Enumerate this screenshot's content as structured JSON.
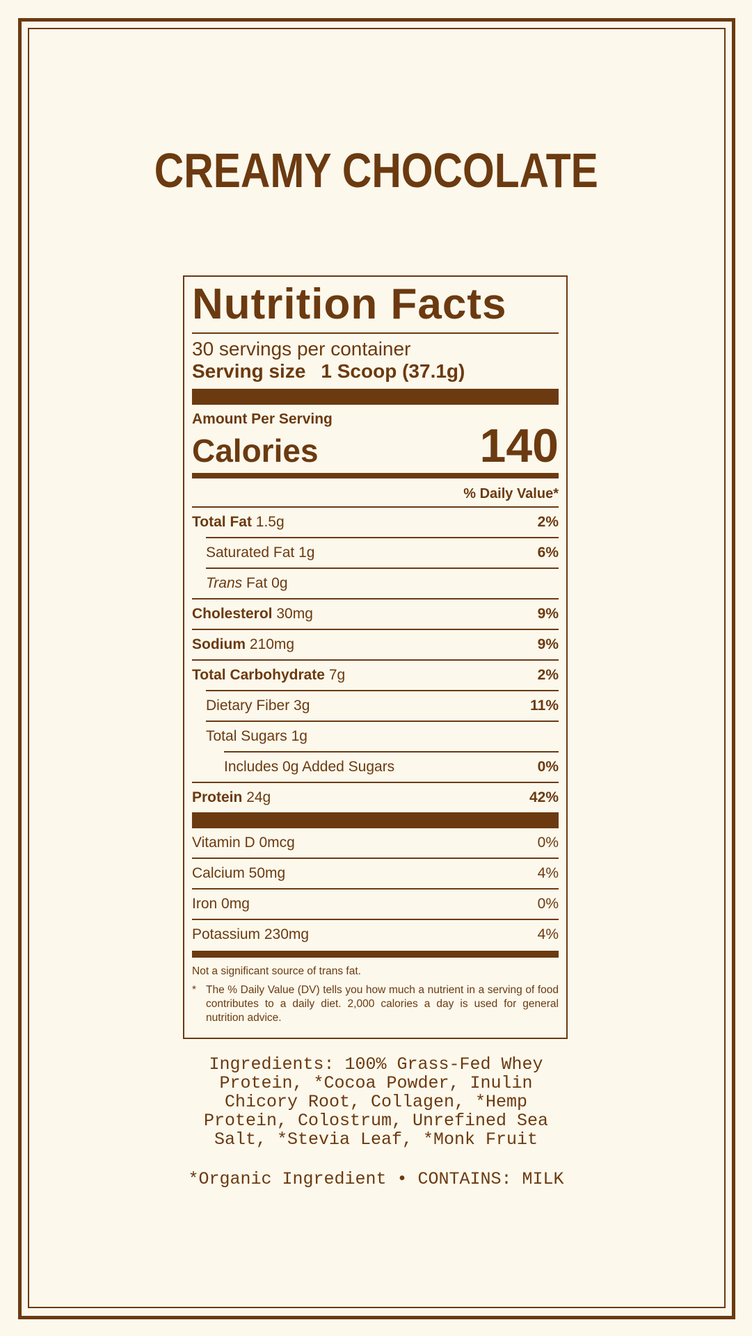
{
  "colors": {
    "brand": "#6b3a10",
    "background": "#fcf8ec"
  },
  "product_title": "CREAMY CHOCOLATE",
  "label": {
    "heading": "Nutrition Facts",
    "servings_per_container": "30 servings per container",
    "serving_size_label": "Serving size",
    "serving_size_value": "1 Scoop (37.1g)",
    "amount_per_serving": "Amount Per Serving",
    "calories_label": "Calories",
    "calories_value": "140",
    "dv_header": "% Daily Value*",
    "nutrients": [
      {
        "name": "Total Fat",
        "amount": "1.5g",
        "dv": "2%"
      },
      {
        "name": "Saturated Fat",
        "amount": "1g",
        "dv": "6%"
      },
      {
        "name": "Trans",
        "amount": "Fat 0g",
        "dv": ""
      },
      {
        "name": "Cholesterol",
        "amount": "30mg",
        "dv": "9%"
      },
      {
        "name": "Sodium",
        "amount": "210mg",
        "dv": "9%"
      },
      {
        "name": "Total Carbohydrate",
        "amount": "7g",
        "dv": "2%"
      },
      {
        "name": "Dietary Fiber",
        "amount": "3g",
        "dv": "11%"
      },
      {
        "name": "Total Sugars",
        "amount": "1g",
        "dv": ""
      },
      {
        "name": "Includes 0g Added Sugars",
        "amount": "",
        "dv": "0%"
      },
      {
        "name": "Protein",
        "amount": "24g",
        "dv": "42%"
      }
    ],
    "vitamins": [
      {
        "text": "Vitamin D 0mcg",
        "dv": "0%"
      },
      {
        "text": "Calcium 50mg",
        "dv": "4%"
      },
      {
        "text": "Iron 0mg",
        "dv": "0%"
      },
      {
        "text": "Potassium 230mg",
        "dv": "4%"
      }
    ],
    "footnote_trans": "Not a significant source of trans fat.",
    "footnote_star": "*",
    "footnote_dv": "The % Daily Value (DV) tells you how much a nutrient in a serving of food contributes to a daily diet. 2,000 calories a day is used for general nutrition advice."
  },
  "ingredients_lines": [
    "Ingredients: 100% Grass-Fed Whey",
    "Protein, *Cocoa Powder, Inulin",
    "Chicory Root, Collagen, *Hemp",
    "Protein, Colostrum, Unrefined Sea",
    "Salt, *Stevia Leaf, *Monk Fruit"
  ],
  "organic_note": "*Organic Ingredient • CONTAINS: MILK"
}
